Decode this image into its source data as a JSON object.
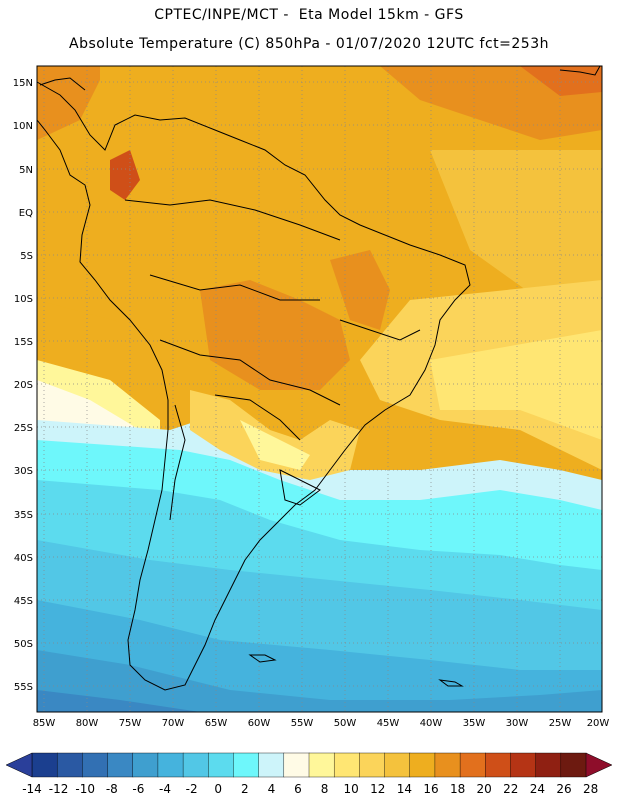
{
  "header": {
    "line1": "CPTEC/INPE/MCT -  Eta Model 15km - GFS",
    "line2": "Absolute Temperature (C) 850hPa - 01/07/2020 12UTC fct=253h"
  },
  "map": {
    "lat_labels": [
      "15N",
      "10N",
      "5N",
      "EQ",
      "5S",
      "10S",
      "15S",
      "20S",
      "25S",
      "30S",
      "35S",
      "40S",
      "45S",
      "50S",
      "55S"
    ],
    "lon_labels": [
      "85W",
      "80W",
      "75W",
      "70W",
      "65W",
      "60W",
      "55W",
      "50W",
      "45W",
      "40W",
      "35W",
      "30W",
      "25W",
      "20W"
    ]
  },
  "colorbar": {
    "labels": [
      "-14",
      "-12",
      "-10",
      "-8",
      "-6",
      "-4",
      "-2",
      "0",
      "2",
      "4",
      "6",
      "8",
      "10",
      "12",
      "14",
      "16",
      "18",
      "20",
      "22",
      "24",
      "26",
      "28"
    ],
    "colors": [
      "#1b3f8f",
      "#2a59a3",
      "#3270b3",
      "#3a88c3",
      "#3f9fcf",
      "#45b3dd",
      "#52c7e6",
      "#5cdbee",
      "#6ef7fb",
      "#cdf4fa",
      "#fffbe6",
      "#fff79a",
      "#ffe673",
      "#fbd45a",
      "#f4c23d",
      "#eeae1f",
      "#e8901e",
      "#e2701d",
      "#cf4f18",
      "#b53415",
      "#8f2012",
      "#6d1a10"
    ],
    "low_color": "#2a3f9a",
    "high_color": "#8e0d2a"
  }
}
